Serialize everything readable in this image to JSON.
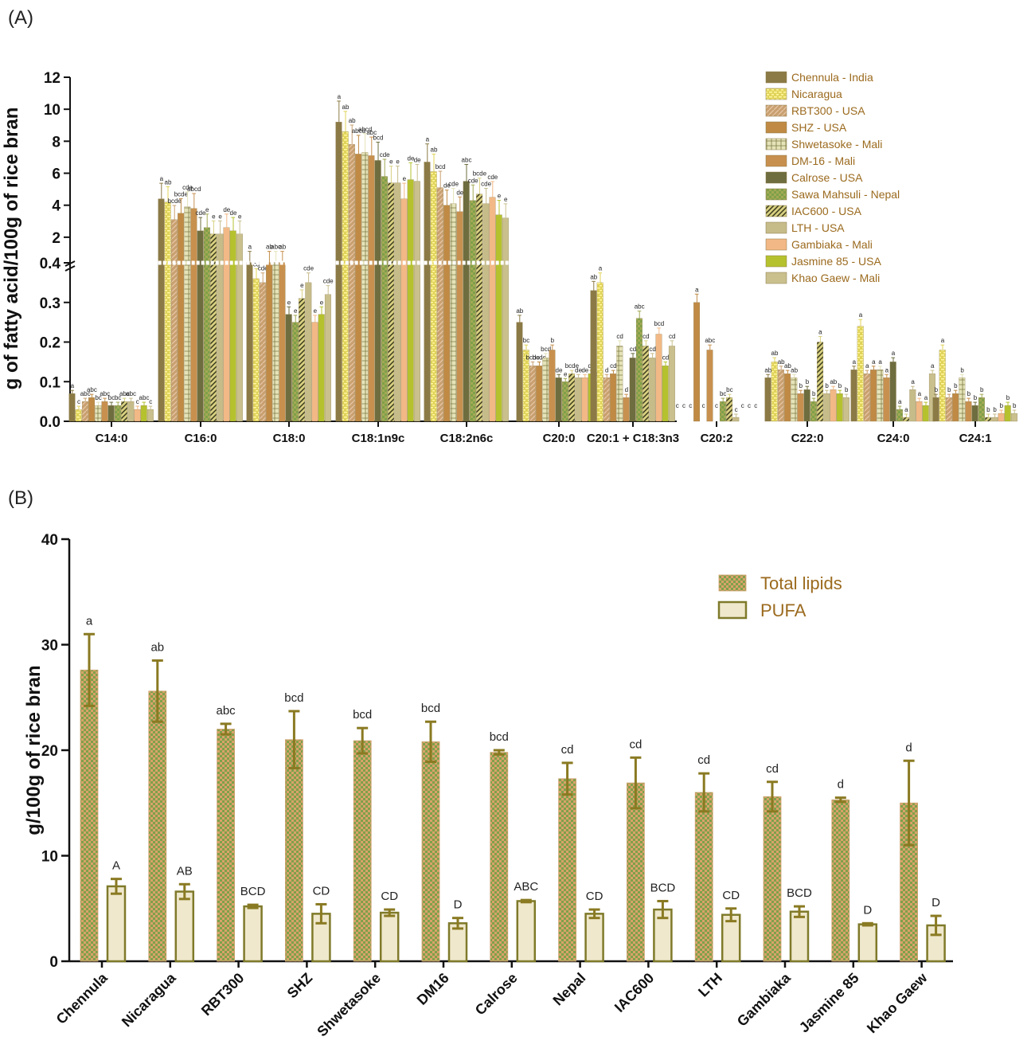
{
  "panel_a_label": "(A)",
  "panel_b_label": "(B)",
  "chart_data": [
    {
      "type": "bar",
      "ylabel": "g of fatty acid/100g of rice bran",
      "y_scale": "broken axis: 0–0.4 linear, then 0.4–12 compressed",
      "y_ticks": [
        "0.0",
        "0.1",
        "0.2",
        "0.3",
        "0.4",
        "2",
        "4",
        "6",
        "8",
        "10",
        "12"
      ],
      "legend_placement": "top-right",
      "categories": [
        "C14:0",
        "C16:0",
        "C18:0",
        "C18:1n9c",
        "C18:2n6c",
        "C20:0",
        "C20:1 + C18:3n3",
        "C20:2",
        "C22:0",
        "C24:0",
        "C24:1"
      ],
      "series": [
        {
          "name": "Chennula - India",
          "color": "#8b7a45",
          "pattern": "solid",
          "values": [
            0.07,
            4.4,
            0.42,
            9.2,
            6.7,
            0.25,
            0.33,
            0,
            0.11,
            0.13,
            0.06
          ],
          "labels": [
            "a",
            "a",
            "a",
            "a",
            "a",
            "ab",
            "ab",
            "c",
            "ab",
            "a",
            "b"
          ]
        },
        {
          "name": "Nicaragua",
          "color": "#e0d35a",
          "pattern": "dashes",
          "values": [
            0.03,
            4.2,
            0.36,
            8.6,
            6.1,
            0.18,
            0.35,
            0,
            0.15,
            0.24,
            0.18
          ],
          "labels": [
            "c",
            "ab",
            "cd",
            "ab",
            "ab",
            "bc",
            "a",
            "c",
            "ab",
            "a",
            "a"
          ]
        },
        {
          "name": "RBT300 - USA",
          "color": "#c9a070",
          "pattern": "diag",
          "values": [
            0.05,
            3.1,
            0.35,
            7.8,
            5.1,
            0.14,
            0.11,
            0,
            0.13,
            0.12,
            0.06
          ],
          "labels": [
            "abc",
            "bcde",
            "cde",
            "ab",
            "bcd",
            "bcde",
            "d",
            "c",
            "ab",
            "a",
            "b"
          ]
        },
        {
          "name": "SHZ - USA",
          "color": "#c08a45",
          "pattern": "solid",
          "values": [
            0.06,
            3.5,
            0.42,
            7.2,
            4.0,
            0.14,
            0.12,
            0.3,
            0.12,
            0.13,
            0.07
          ],
          "labels": [
            "abc",
            "bcde",
            "ab",
            "abcd",
            "de",
            "bcde",
            "cd",
            "a",
            "ab",
            "a",
            "b"
          ]
        },
        {
          "name": "Shwetasoke - Mali",
          "color": "#e5e3b8",
          "pattern": "grid",
          "values": [
            0.04,
            3.9,
            0.42,
            7.3,
            4.1,
            0.16,
            0.19,
            0,
            0.11,
            0.13,
            0.11
          ],
          "labels": [
            "bc",
            "cde",
            "abc",
            "abcd",
            "cde",
            "bcd",
            "cd",
            "c",
            "ab",
            "a",
            "b"
          ]
        },
        {
          "name": "DM-16 - Mali",
          "color": "#c8904e",
          "pattern": "solid",
          "values": [
            0.05,
            3.8,
            0.42,
            7.1,
            3.6,
            0.18,
            0.06,
            0.18,
            0.07,
            0.11,
            0.05
          ],
          "labels": [
            "abc",
            "abcd",
            "ab",
            "abc",
            "de",
            "b",
            "d",
            "abc",
            "b",
            "a",
            "b"
          ]
        },
        {
          "name": "Calrose - USA",
          "color": "#6e6d3f",
          "pattern": "solid",
          "values": [
            0.04,
            2.4,
            0.27,
            6.8,
            5.5,
            0.11,
            0.16,
            0,
            0.08,
            0.15,
            0.04
          ],
          "labels": [
            "bc",
            "cde",
            "e",
            "bcd",
            "abc",
            "de",
            "cd",
            "c",
            "b",
            "a",
            "b"
          ]
        },
        {
          "name": "Sawa Mahsuli - Nepal",
          "color": "#a3a954",
          "pattern": "checker",
          "values": [
            0.04,
            2.6,
            0.25,
            5.8,
            4.3,
            0.1,
            0.26,
            0.05,
            0.05,
            0.03,
            0.06
          ],
          "labels": [
            "bc",
            "e",
            "e",
            "cde",
            "cde",
            "e",
            "abc",
            "bc",
            "b",
            "a",
            "b"
          ]
        },
        {
          "name": "IAC600 - USA",
          "color": "#d8d080",
          "pattern": "stripe",
          "values": [
            0.05,
            2.2,
            0.31,
            5.4,
            4.7,
            0.12,
            0.19,
            0.06,
            0.2,
            0.01,
            0.01
          ],
          "labels": [
            "abc",
            "e",
            "e",
            "e",
            "bcde",
            "bcde",
            "cd",
            "bc",
            "a",
            "a",
            "b"
          ]
        },
        {
          "name": "LTH - USA",
          "color": "#c6bc8a",
          "pattern": "solid",
          "values": [
            0.05,
            2.2,
            0.35,
            5.4,
            4.1,
            0.11,
            0.16,
            0.01,
            0.07,
            0.08,
            0.01
          ],
          "labels": [
            "abc",
            "e",
            "cde",
            "e",
            "cde",
            "de",
            "cd",
            "c",
            "b",
            "a",
            "b"
          ]
        },
        {
          "name": "Gambiaka - Mali",
          "color": "#f2b885",
          "pattern": "solid",
          "values": [
            0.03,
            2.6,
            0.25,
            4.4,
            4.5,
            0.11,
            0.22,
            0,
            0.08,
            0.05,
            0.02
          ],
          "labels": [
            "c",
            "de",
            "e",
            "e",
            "cde",
            "de",
            "bcd",
            "c",
            "ab",
            "a",
            "b"
          ]
        },
        {
          "name": "Jasmine 85 - USA",
          "color": "#b5c22e",
          "pattern": "solid",
          "values": [
            0.04,
            2.4,
            0.27,
            5.6,
            3.4,
            0.12,
            0.14,
            0,
            0.07,
            0.04,
            0.04
          ],
          "labels": [
            "abc",
            "de",
            "e",
            "de",
            "e",
            "de",
            "cd",
            "c",
            "b",
            "a",
            "b"
          ]
        },
        {
          "name": "Khao Gaew - Mali",
          "color": "#c9c08e",
          "pattern": "solid",
          "values": [
            0.03,
            2.2,
            0.32,
            5.5,
            3.2,
            0.1,
            0.19,
            0,
            0.06,
            0.12,
            0.02
          ],
          "labels": [
            "c",
            "e",
            "cde",
            "de",
            "e",
            "de",
            "cd",
            "c",
            "b",
            "a",
            "b"
          ]
        }
      ]
    },
    {
      "type": "bar",
      "ylabel": "g/100g of rice bran",
      "ylim": [
        0,
        40
      ],
      "y_ticks": [
        "0",
        "10",
        "20",
        "30",
        "40"
      ],
      "legend_placement": "top-right",
      "categories": [
        "Chennula",
        "Nicaragua",
        "RBT300",
        "SHZ",
        "Shwetasoke",
        "DM16",
        "Calrose",
        "Nepal",
        "IAC600",
        "LTH",
        "Gambiaka",
        "Jasmine 85",
        "Khao Gaew"
      ],
      "series": [
        {
          "name": "Total lipids",
          "color": "#d9a36a",
          "pattern": "checker",
          "values": [
            27.6,
            25.6,
            22.0,
            21.0,
            20.9,
            20.8,
            19.8,
            17.3,
            16.9,
            16.0,
            15.6,
            15.3,
            15.0
          ],
          "errors": [
            3.4,
            2.9,
            0.5,
            2.7,
            1.2,
            1.9,
            0.2,
            1.5,
            2.4,
            1.8,
            1.4,
            0.2,
            4.0
          ],
          "labels": [
            "a",
            "ab",
            "abc",
            "bcd",
            "bcd",
            "bcd",
            "bcd",
            "cd",
            "cd",
            "cd",
            "cd",
            "d",
            "d"
          ]
        },
        {
          "name": "PUFA",
          "color": "#efe8cc",
          "pattern": "solid",
          "values": [
            7.1,
            6.6,
            5.2,
            4.5,
            4.6,
            3.6,
            5.7,
            4.5,
            4.9,
            4.4,
            4.7,
            3.5,
            3.4
          ],
          "errors": [
            0.7,
            0.7,
            0.15,
            0.9,
            0.3,
            0.5,
            0.1,
            0.4,
            0.8,
            0.6,
            0.5,
            0.1,
            0.9
          ],
          "labels": [
            "A",
            "AB",
            "BCD",
            "CD",
            "CD",
            "D",
            "ABC",
            "CD",
            "BCD",
            "CD",
            "BCD",
            "D",
            "D"
          ]
        }
      ]
    }
  ]
}
